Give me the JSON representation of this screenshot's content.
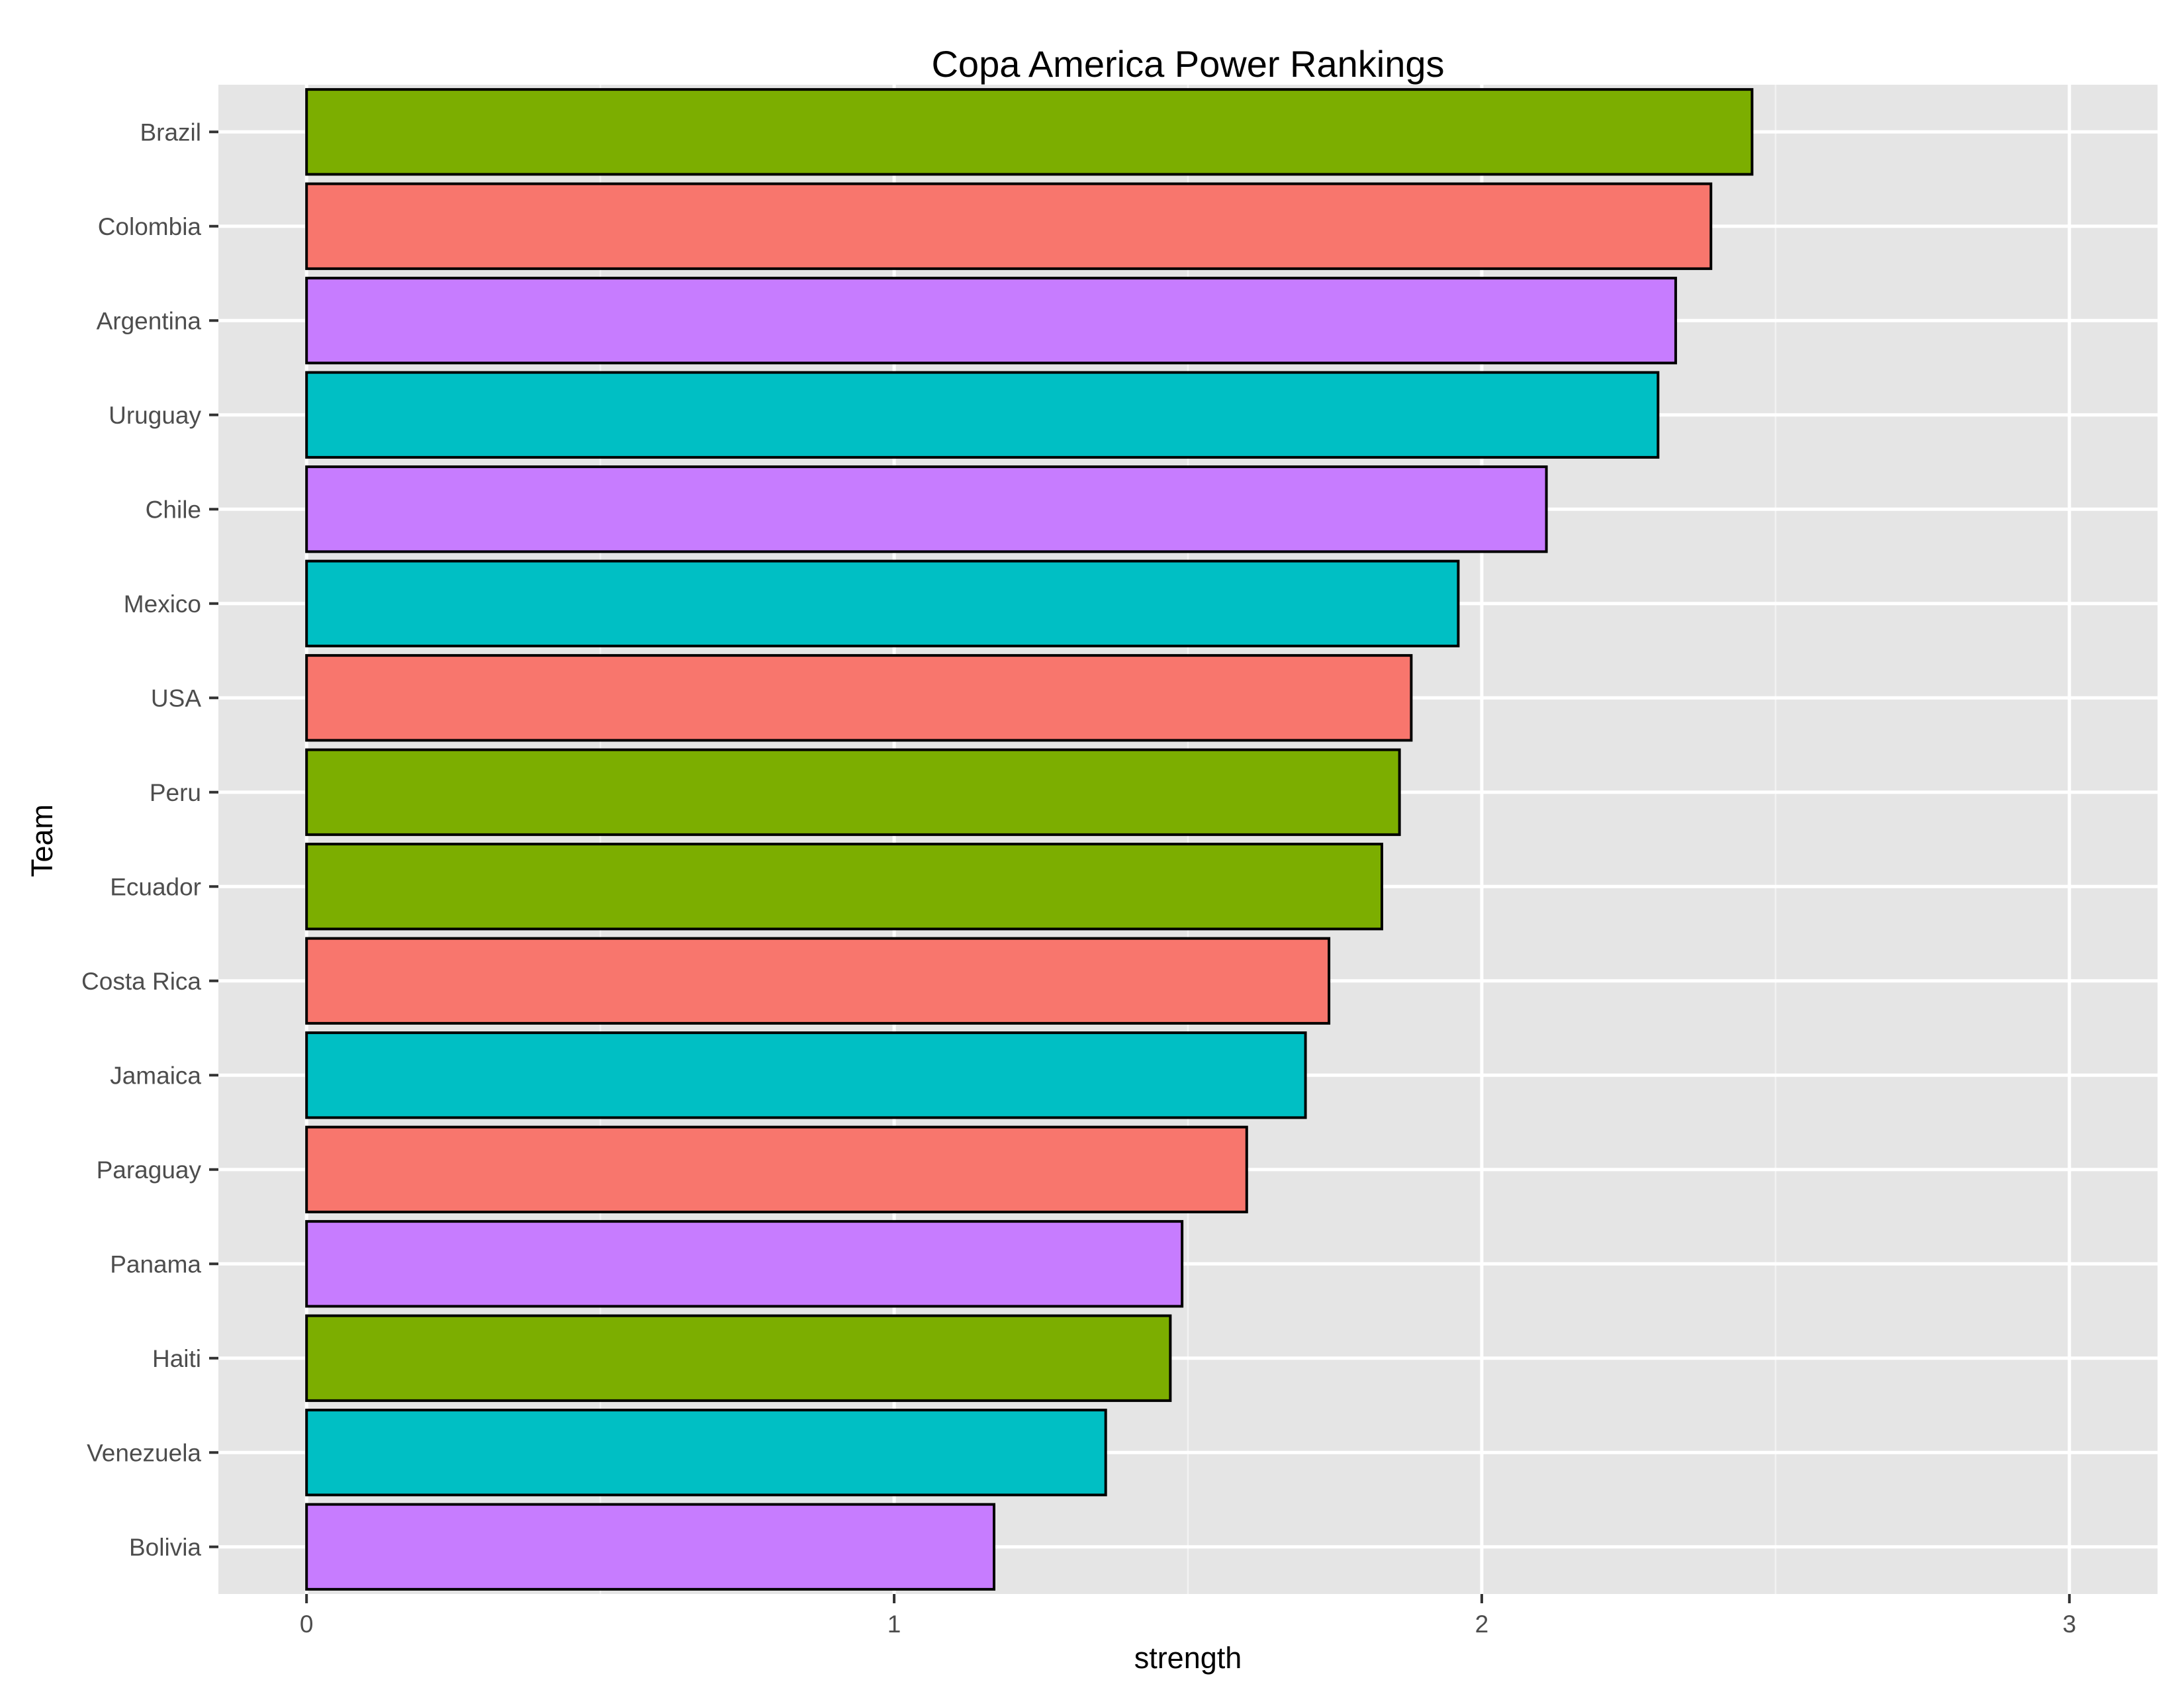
{
  "chart_data": {
    "type": "bar",
    "orientation": "horizontal",
    "title": "Copa America Power Rankings",
    "xlabel": "strength",
    "ylabel": "Team",
    "xlim": [
      -0.15,
      3.15
    ],
    "xticks": [
      0,
      1,
      2,
      3
    ],
    "grid": true,
    "legend": "none",
    "panel_background": "#e5e5e5",
    "bar_outline": "#000000",
    "categories": [
      "Brazil",
      "Colombia",
      "Argentina",
      "Uruguay",
      "Chile",
      "Mexico",
      "USA",
      "Peru",
      "Ecuador",
      "Costa Rica",
      "Jamaica",
      "Paraguay",
      "Panama",
      "Haiti",
      "Venezuela",
      "Bolivia"
    ],
    "values": [
      2.46,
      2.39,
      2.33,
      2.3,
      2.11,
      1.96,
      1.88,
      1.86,
      1.83,
      1.74,
      1.7,
      1.6,
      1.49,
      1.47,
      1.36,
      1.17
    ],
    "colors": [
      "#7cae00",
      "#f8766d",
      "#c77cff",
      "#00bfc4",
      "#c77cff",
      "#00bfc4",
      "#f8766d",
      "#7cae00",
      "#7cae00",
      "#f8766d",
      "#00bfc4",
      "#f8766d",
      "#c77cff",
      "#7cae00",
      "#00bfc4",
      "#c77cff"
    ]
  }
}
